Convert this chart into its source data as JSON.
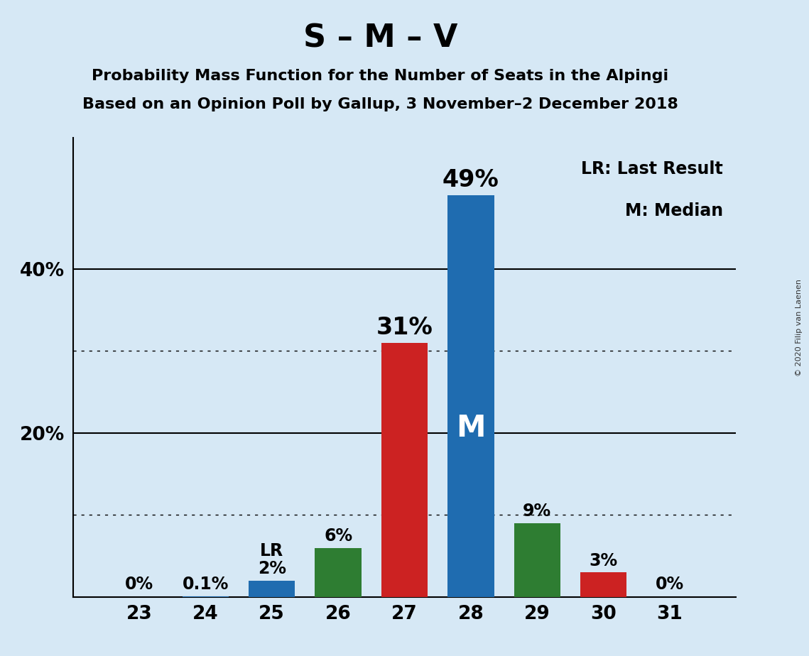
{
  "title": "S – M – V",
  "subtitle1": "Probability Mass Function for the Number of Seats in the Alpingi",
  "subtitle2": "Based on an Opinion Poll by Gallup, 3 November–2 December 2018",
  "copyright": "© 2020 Filip van Laenen",
  "seats": [
    23,
    24,
    25,
    26,
    27,
    28,
    29,
    30,
    31
  ],
  "probabilities": [
    0.0,
    0.1,
    2.0,
    6.0,
    31.0,
    49.0,
    9.0,
    3.0,
    0.0
  ],
  "labels": [
    "0%",
    "0.1%",
    "2%",
    "6%",
    "31%",
    "49%",
    "9%",
    "3%",
    "0%"
  ],
  "bar_colors": [
    "#1f6cb0",
    "#1f6cb0",
    "#1f6cb0",
    "#2e7d32",
    "#cc2222",
    "#1f6cb0",
    "#2e7d32",
    "#cc2222",
    "#1f6cb0"
  ],
  "median_seat": 28,
  "lr_seat": 25,
  "background_color": "#d6e8f5",
  "ylim": [
    0,
    56
  ],
  "yticks": [
    10,
    20,
    30,
    40
  ],
  "ytick_labels": [
    "",
    "20%",
    "",
    "40%"
  ],
  "solid_gridlines": [
    20,
    40
  ],
  "dotted_gridlines": [
    10,
    30
  ],
  "legend_lr": "LR: Last Result",
  "legend_m": "M: Median",
  "median_label": "M",
  "lr_label": "LR",
  "title_fontsize": 32,
  "subtitle_fontsize": 16,
  "label_fontsize": 17,
  "axis_fontsize": 19,
  "legend_fontsize": 17
}
